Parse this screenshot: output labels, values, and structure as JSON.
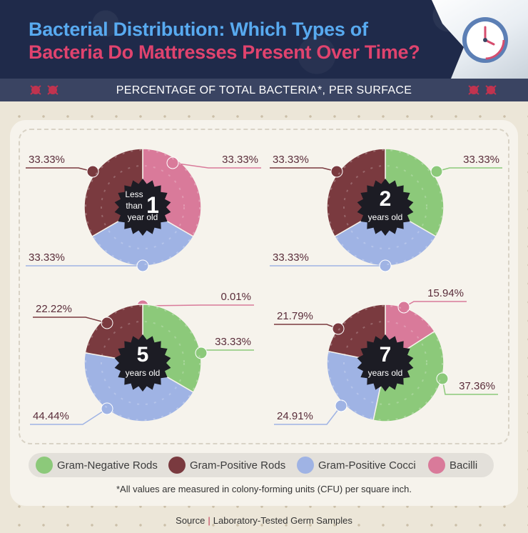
{
  "header": {
    "title_line1": "Bacterial Distribution: Which Types of",
    "title_line2": "Bacteria Do Mattresses Present Over Time?",
    "subtitle": "PERCENTAGE OF TOTAL BACTERIA*, PER SURFACE"
  },
  "colors": {
    "gram_negative_rods": "#8cc97a",
    "gram_positive_rods": "#7a3a3f",
    "gram_positive_cocci": "#9fb3e4",
    "bacilli": "#d97a9a",
    "title_blue": "#58aaf0",
    "title_red": "#e0436e",
    "header_bg": "#1f2a4a"
  },
  "chart_data": [
    {
      "type": "pie",
      "center_number": "1",
      "center_text": [
        "Less",
        "than",
        "year old"
      ],
      "slices": [
        {
          "category": "Bacilli",
          "value": 33.33,
          "label": "33.33%"
        },
        {
          "category": "Gram-Positive Cocci",
          "value": 33.33,
          "label": "33.33%"
        },
        {
          "category": "Gram-Positive Rods",
          "value": 33.33,
          "label": "33.33%"
        }
      ]
    },
    {
      "type": "pie",
      "center_number": "2",
      "center_text": [
        "years old"
      ],
      "slices": [
        {
          "category": "Gram-Negative Rods",
          "value": 33.33,
          "label": "33.33%"
        },
        {
          "category": "Gram-Positive Cocci",
          "value": 33.33,
          "label": "33.33%"
        },
        {
          "category": "Gram-Positive Rods",
          "value": 33.33,
          "label": "33.33%"
        }
      ]
    },
    {
      "type": "pie",
      "center_number": "5",
      "center_text": [
        "years old"
      ],
      "slices": [
        {
          "category": "Bacilli",
          "value": 0.01,
          "label": "0.01%"
        },
        {
          "category": "Gram-Negative Rods",
          "value": 33.33,
          "label": "33.33%"
        },
        {
          "category": "Gram-Positive Cocci",
          "value": 44.44,
          "label": "44.44%"
        },
        {
          "category": "Gram-Positive Rods",
          "value": 22.22,
          "label": "22.22%"
        }
      ]
    },
    {
      "type": "pie",
      "center_number": "7",
      "center_text": [
        "years old"
      ],
      "slices": [
        {
          "category": "Bacilli",
          "value": 15.94,
          "label": "15.94%"
        },
        {
          "category": "Gram-Negative Rods",
          "value": 37.36,
          "label": "37.36%"
        },
        {
          "category": "Gram-Positive Cocci",
          "value": 24.91,
          "label": "24.91%"
        },
        {
          "category": "Gram-Positive Rods",
          "value": 21.79,
          "label": "21.79%"
        }
      ]
    }
  ],
  "legend": [
    {
      "label": "Gram-Negative Rods",
      "color": "#8cc97a"
    },
    {
      "label": "Gram-Positive Rods",
      "color": "#7a3a3f"
    },
    {
      "label": "Gram-Positive Cocci",
      "color": "#9fb3e4"
    },
    {
      "label": "Bacilli",
      "color": "#d97a9a"
    }
  ],
  "footnote": "*All values are measured in colony-forming units (CFU) per square inch.",
  "source": {
    "label": "Source",
    "separator": "|",
    "text": "Laboratory-Tested Germ Samples"
  }
}
